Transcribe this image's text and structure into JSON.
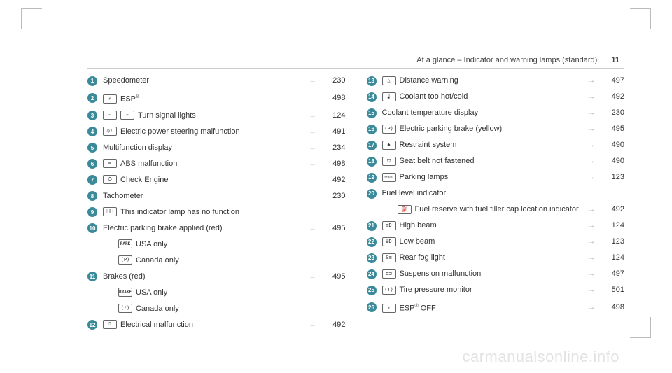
{
  "header": {
    "title": "At a glance – Indicator and warning lamps (standard)",
    "pagenum": "11"
  },
  "watermark": "carmanualsonline.info",
  "left": [
    {
      "num": "1",
      "icons": [],
      "label": "Speedometer",
      "page": "230"
    },
    {
      "num": "2",
      "icons": [
        {
          "g": "⚡"
        }
      ],
      "label": "ESP",
      "sup": "®",
      "page": "498"
    },
    {
      "num": "3",
      "icons": [
        {
          "g": "⇦"
        },
        {
          "g": "⇨"
        }
      ],
      "label": "Turn signal lights",
      "page": "124"
    },
    {
      "num": "4",
      "icons": [
        {
          "g": "◎!"
        }
      ],
      "label": "Electric power steering malfunction",
      "page": "491"
    },
    {
      "num": "5",
      "icons": [],
      "label": "Multifunction display",
      "page": "234"
    },
    {
      "num": "6",
      "icons": [
        {
          "g": "⊛"
        }
      ],
      "label": "ABS malfunction",
      "page": "498"
    },
    {
      "num": "7",
      "icons": [
        {
          "g": "⛭"
        }
      ],
      "label": "Check Engine",
      "page": "492"
    },
    {
      "num": "8",
      "icons": [],
      "label": "Tachometer",
      "page": "230"
    },
    {
      "num": "9",
      "icons": [
        {
          "g": "⎕⎕"
        }
      ],
      "label": "This indicator lamp has no function",
      "page": ""
    },
    {
      "num": "10",
      "icons": [],
      "label": "Electric parking brake applied (red)",
      "page": "495"
    },
    {
      "sub": true,
      "icons": [
        {
          "t": "PARK"
        }
      ],
      "label": "USA only"
    },
    {
      "sub": true,
      "icons": [
        {
          "g": "(P)"
        }
      ],
      "label": "Canada only"
    },
    {
      "num": "11",
      "icons": [],
      "label": "Brakes (red)",
      "page": "495"
    },
    {
      "sub": true,
      "icons": [
        {
          "t": "BRAKE"
        }
      ],
      "label": "USA only"
    },
    {
      "sub": true,
      "icons": [
        {
          "g": "(!)"
        }
      ],
      "label": "Canada only"
    },
    {
      "num": "12",
      "icons": [
        {
          "g": "⎍"
        }
      ],
      "label": "Electrical malfunction",
      "page": "492"
    }
  ],
  "right": [
    {
      "num": "13",
      "icons": [
        {
          "g": "△"
        }
      ],
      "label": "Distance warning",
      "page": "497"
    },
    {
      "num": "14",
      "icons": [
        {
          "g": "🌡"
        }
      ],
      "label": "Coolant too hot/cold",
      "page": "492"
    },
    {
      "num": "15",
      "icons": [],
      "label": "Coolant temperature display",
      "page": "230"
    },
    {
      "num": "16",
      "icons": [
        {
          "g": "(P)"
        }
      ],
      "label": "Electric parking brake (yellow)",
      "page": "495"
    },
    {
      "num": "17",
      "icons": [
        {
          "g": "✱"
        }
      ],
      "label": "Restraint system",
      "page": "490"
    },
    {
      "num": "18",
      "icons": [
        {
          "g": "⛉"
        }
      ],
      "label": "Seat belt not fastened",
      "page": "490"
    },
    {
      "num": "19",
      "icons": [
        {
          "g": "≡⊙⊙"
        }
      ],
      "label": "Parking lamps",
      "page": "123"
    },
    {
      "num": "20",
      "icons": [],
      "label": "Fuel level indicator",
      "page": ""
    },
    {
      "sub": true,
      "icons": [
        {
          "g": "⛽"
        }
      ],
      "label": "Fuel reserve with fuel filler cap location indicator",
      "page": "492"
    },
    {
      "num": "21",
      "icons": [
        {
          "g": "≡D"
        }
      ],
      "label": "High beam",
      "page": "124"
    },
    {
      "num": "22",
      "icons": [
        {
          "g": "≣D"
        }
      ],
      "label": "Low beam",
      "page": "123"
    },
    {
      "num": "23",
      "icons": [
        {
          "g": "0≡"
        }
      ],
      "label": "Rear fog light",
      "page": "124"
    },
    {
      "num": "24",
      "icons": [
        {
          "g": "⊏⊐"
        }
      ],
      "label": "Suspension malfunction",
      "page": "497"
    },
    {
      "num": "25",
      "icons": [
        {
          "g": "(!)"
        }
      ],
      "label": "Tire pressure monitor",
      "page": "501"
    },
    {
      "num": "26",
      "icons": [
        {
          "g": "⚡"
        }
      ],
      "label": "ESP",
      "sup": "®",
      "suffix": " OFF",
      "page": "498"
    }
  ]
}
